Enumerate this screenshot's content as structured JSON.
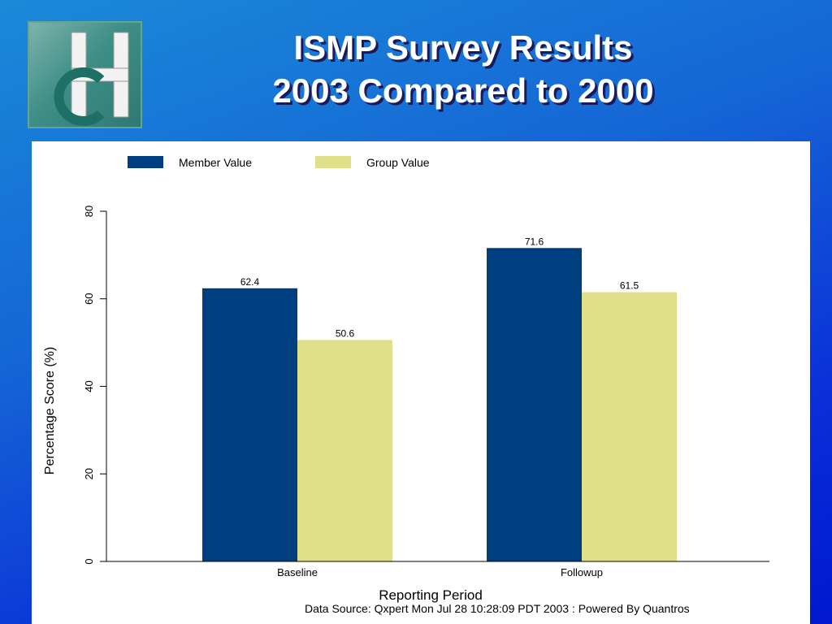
{
  "slide": {
    "title_line1": "ISMP Survey Results",
    "title_line2": "2003 Compared to 2000",
    "logo_text": "CH",
    "data_source": "Data Source: Qxpert  Mon Jul 28 10:28:09 PDT 2003 : Powered By Quantros"
  },
  "colors": {
    "member": "#003f7f",
    "group": "#e0e08a",
    "title": "#ffffff"
  },
  "chart_data": {
    "type": "bar",
    "categories": [
      "Baseline",
      "Followup"
    ],
    "series": [
      {
        "name": "Member Value",
        "values": [
          62.4,
          71.6
        ]
      },
      {
        "name": "Group Value",
        "values": [
          50.6,
          61.5
        ]
      }
    ],
    "data_labels": [
      [
        "62.4",
        "71.6"
      ],
      [
        "50.6",
        "61.5"
      ]
    ],
    "xlabel": "Reporting Period",
    "ylabel": "Percentage Score (%)",
    "ylim": [
      0,
      80
    ],
    "yticks": [
      0,
      20,
      40,
      60,
      80
    ],
    "legend_position": "top-left",
    "grid": false
  }
}
